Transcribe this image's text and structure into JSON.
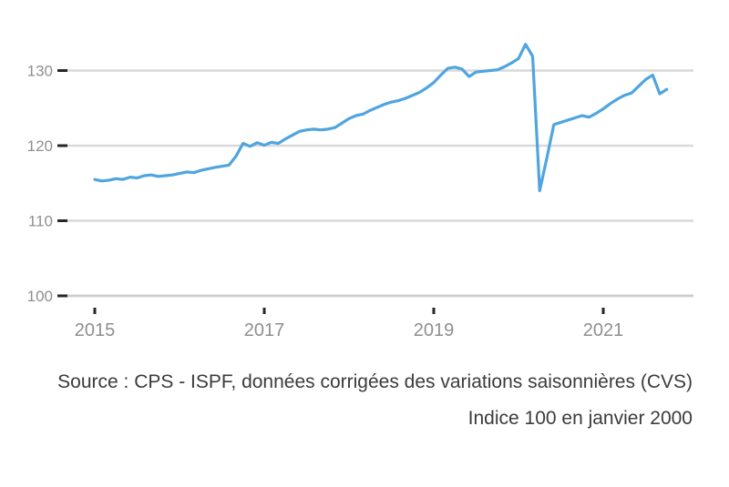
{
  "chart_data": {
    "type": "line",
    "title": "",
    "xlabel": "",
    "ylabel": "",
    "x_start": "2015-01",
    "x_interval": "monthly",
    "x_end": "2021-10",
    "x_tick_labels": [
      "2015",
      "2017",
      "2019",
      "2021"
    ],
    "y_tick_labels": [
      "130",
      "120",
      "110",
      "100"
    ],
    "y_tick_values": [
      130,
      120,
      110,
      100
    ],
    "ylim": [
      100,
      134.5
    ],
    "grid": "horizontal",
    "legend": "none",
    "line_color": "#4fa5de",
    "grid_color": "#d9d9d9",
    "tick_mark_color": "#262626",
    "axis_label_color": "#8f8f8f",
    "values": [
      115.5,
      115.3,
      115.4,
      115.6,
      115.5,
      115.8,
      115.7,
      116.0,
      116.1,
      115.9,
      116.0,
      116.1,
      116.3,
      116.5,
      116.4,
      116.7,
      116.9,
      117.1,
      117.25,
      117.4,
      118.6,
      120.3,
      119.9,
      120.4,
      120.05,
      120.45,
      120.3,
      120.9,
      121.4,
      121.9,
      122.1,
      122.2,
      122.1,
      122.2,
      122.4,
      123.0,
      123.6,
      124.0,
      124.2,
      124.7,
      125.1,
      125.5,
      125.8,
      126.0,
      126.3,
      126.7,
      127.1,
      127.7,
      128.4,
      129.4,
      130.3,
      130.45,
      130.2,
      129.2,
      129.8,
      129.9,
      130.0,
      130.1,
      130.5,
      131.0,
      131.6,
      133.5,
      131.9,
      114.0,
      118.3,
      122.8,
      123.1,
      123.4,
      123.7,
      124.0,
      123.8,
      124.3,
      124.9,
      125.6,
      126.2,
      126.7,
      127.0,
      127.9,
      128.8,
      129.4,
      126.9,
      127.5
    ]
  },
  "footer": {
    "source": "Source : CPS - ISPF, données corrigées des variations saisonnières (CVS)",
    "note": "Indice 100 en janvier 2000"
  }
}
